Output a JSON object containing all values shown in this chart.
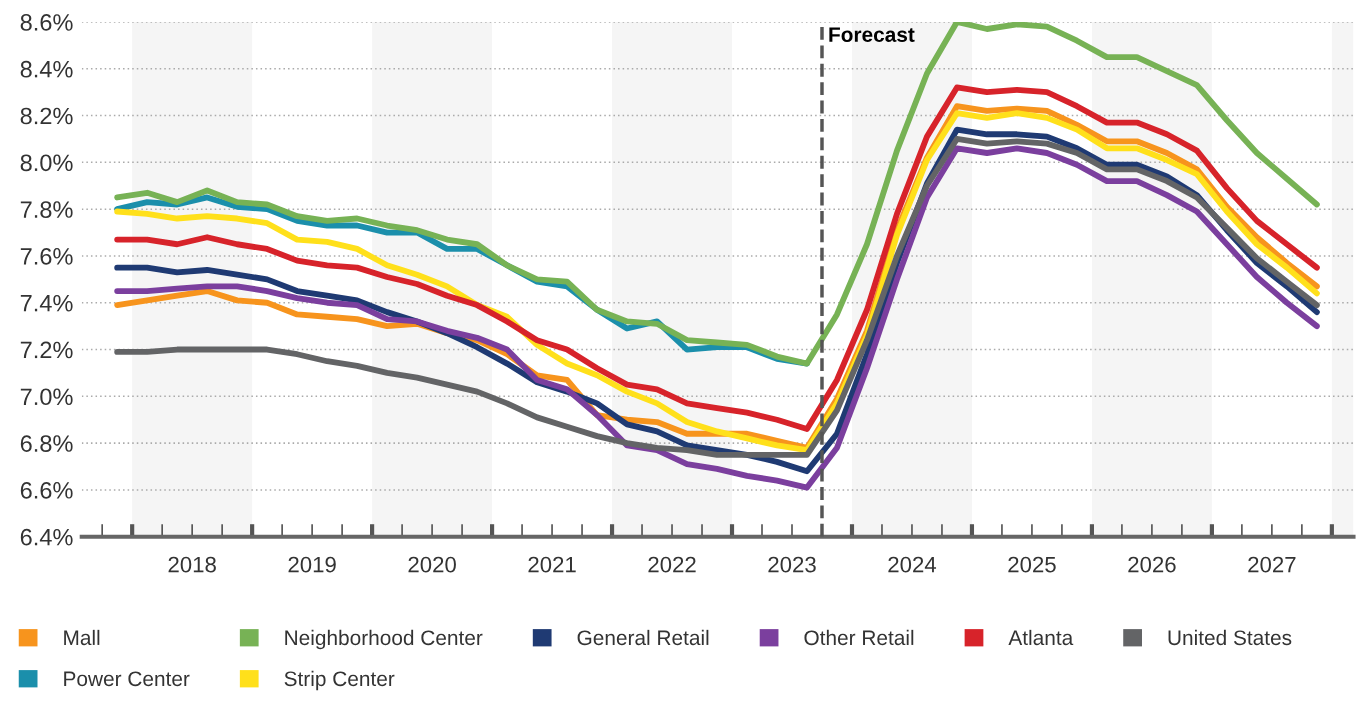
{
  "chart_data": {
    "type": "line",
    "x": [
      2017.875,
      2018.125,
      2018.375,
      2018.625,
      2018.875,
      2019.125,
      2019.375,
      2019.625,
      2019.875,
      2020.125,
      2020.375,
      2020.625,
      2020.875,
      2021.125,
      2021.375,
      2021.625,
      2021.875,
      2022.125,
      2022.375,
      2022.625,
      2022.875,
      2023.125,
      2023.375,
      2023.625,
      2023.875,
      2024.125,
      2024.375,
      2024.625,
      2024.875,
      2025.125,
      2025.375,
      2025.625,
      2025.875,
      2026.125,
      2026.375,
      2026.625,
      2026.875,
      2027.125,
      2027.375,
      2027.625,
      2027.875
    ],
    "series": [
      {
        "name": "Mall",
        "color": "#f7941d",
        "values": [
          7.39,
          7.41,
          7.43,
          7.45,
          7.41,
          7.4,
          7.35,
          7.34,
          7.33,
          7.3,
          7.31,
          7.27,
          7.24,
          7.18,
          7.09,
          7.07,
          6.92,
          6.9,
          6.89,
          6.84,
          6.84,
          6.84,
          6.81,
          6.78,
          6.99,
          7.28,
          7.71,
          8.02,
          8.24,
          8.22,
          8.23,
          8.22,
          8.16,
          8.09,
          8.09,
          8.04,
          7.97,
          7.81,
          7.68,
          7.57,
          7.47
        ]
      },
      {
        "name": "Power Center",
        "color": "#1b8fab",
        "values": [
          7.8,
          7.83,
          7.82,
          7.85,
          7.81,
          7.8,
          7.75,
          7.73,
          7.73,
          7.7,
          7.7,
          7.63,
          7.63,
          7.56,
          7.49,
          7.47,
          7.37,
          7.29,
          7.32,
          7.2,
          7.21,
          7.21,
          7.16,
          7.14,
          null,
          null,
          null,
          null,
          null,
          null,
          null,
          null,
          null,
          null,
          null,
          null,
          null,
          null,
          null,
          null,
          null
        ]
      },
      {
        "name": "Neighborhood Center",
        "color": "#77b255",
        "values": [
          7.85,
          7.87,
          7.83,
          7.88,
          7.83,
          7.82,
          7.77,
          7.75,
          7.76,
          7.73,
          7.71,
          7.67,
          7.65,
          7.56,
          7.5,
          7.49,
          7.37,
          7.32,
          7.31,
          7.24,
          7.23,
          7.22,
          7.17,
          7.14,
          7.35,
          7.65,
          8.05,
          8.38,
          8.6,
          8.57,
          8.59,
          8.58,
          8.52,
          8.45,
          8.45,
          8.39,
          8.33,
          8.18,
          8.04,
          7.93,
          7.82
        ]
      },
      {
        "name": "Strip Center",
        "color": "#ffe01b",
        "values": [
          7.79,
          7.78,
          7.76,
          7.77,
          7.76,
          7.74,
          7.67,
          7.66,
          7.63,
          7.56,
          7.52,
          7.47,
          7.39,
          7.34,
          7.22,
          7.14,
          7.09,
          7.02,
          6.97,
          6.89,
          6.85,
          6.82,
          6.79,
          6.77,
          6.97,
          7.26,
          7.69,
          8.01,
          8.21,
          8.19,
          8.21,
          8.19,
          8.14,
          8.06,
          8.06,
          8.01,
          7.95,
          7.79,
          7.65,
          7.55,
          7.44
        ]
      },
      {
        "name": "General Retail",
        "color": "#1f3a73",
        "values": [
          7.55,
          7.55,
          7.53,
          7.54,
          7.52,
          7.5,
          7.45,
          7.43,
          7.41,
          7.36,
          7.32,
          7.27,
          7.21,
          7.14,
          7.06,
          7.02,
          6.97,
          6.88,
          6.85,
          6.79,
          6.77,
          6.75,
          6.72,
          6.68,
          6.84,
          7.18,
          7.57,
          7.91,
          8.14,
          8.12,
          8.12,
          8.11,
          8.06,
          7.99,
          7.99,
          7.94,
          7.86,
          7.71,
          7.57,
          7.47,
          7.36
        ]
      },
      {
        "name": "Other Retail",
        "color": "#7b3f9e",
        "values": [
          7.45,
          7.45,
          7.46,
          7.47,
          7.47,
          7.45,
          7.42,
          7.4,
          7.39,
          7.33,
          7.32,
          7.28,
          7.25,
          7.2,
          7.07,
          7.03,
          6.92,
          6.79,
          6.77,
          6.71,
          6.69,
          6.66,
          6.64,
          6.61,
          6.78,
          7.12,
          7.5,
          7.85,
          8.06,
          8.04,
          8.06,
          8.04,
          7.99,
          7.92,
          7.92,
          7.86,
          7.79,
          7.65,
          7.51,
          7.4,
          7.3
        ]
      },
      {
        "name": "Atlanta",
        "color": "#d7232a",
        "values": [
          7.67,
          7.67,
          7.65,
          7.68,
          7.65,
          7.63,
          7.58,
          7.56,
          7.55,
          7.51,
          7.48,
          7.43,
          7.39,
          7.32,
          7.24,
          7.2,
          7.12,
          7.05,
          7.03,
          6.97,
          6.95,
          6.93,
          6.9,
          6.86,
          7.07,
          7.37,
          7.78,
          8.11,
          8.32,
          8.3,
          8.31,
          8.3,
          8.24,
          8.17,
          8.17,
          8.12,
          8.05,
          7.89,
          7.75,
          7.65,
          7.55
        ]
      },
      {
        "name": "United States",
        "color": "#636466",
        "values": [
          7.19,
          7.19,
          7.2,
          7.2,
          7.2,
          7.2,
          7.18,
          7.15,
          7.13,
          7.1,
          7.08,
          7.05,
          7.02,
          6.97,
          6.91,
          6.87,
          6.83,
          6.8,
          6.78,
          6.77,
          6.75,
          6.75,
          6.75,
          6.75,
          6.94,
          7.24,
          7.6,
          7.9,
          8.1,
          8.08,
          8.09,
          8.08,
          8.04,
          7.97,
          7.97,
          7.92,
          7.85,
          7.72,
          7.59,
          7.49,
          7.39
        ]
      }
    ],
    "xlim": [
      2017.58,
      2028.18
    ],
    "xticks": [
      {
        "value": 2017.75,
        "label": null
      },
      {
        "value": 2018,
        "label": null
      },
      {
        "value": 2018.25,
        "label": null
      },
      {
        "value": 2018.5,
        "label": "2018"
      },
      {
        "value": 2018.75,
        "label": null
      },
      {
        "value": 2019,
        "label": null
      },
      {
        "value": 2019.25,
        "label": null
      },
      {
        "value": 2019.5,
        "label": "2019"
      },
      {
        "value": 2019.75,
        "label": null
      },
      {
        "value": 2020,
        "label": null
      },
      {
        "value": 2020.25,
        "label": null
      },
      {
        "value": 2020.5,
        "label": "2020"
      },
      {
        "value": 2020.75,
        "label": null
      },
      {
        "value": 2021,
        "label": null
      },
      {
        "value": 2021.25,
        "label": null
      },
      {
        "value": 2021.5,
        "label": "2021"
      },
      {
        "value": 2021.75,
        "label": null
      },
      {
        "value": 2022,
        "label": null
      },
      {
        "value": 2022.25,
        "label": null
      },
      {
        "value": 2022.5,
        "label": "2022"
      },
      {
        "value": 2022.75,
        "label": null
      },
      {
        "value": 2023,
        "label": null
      },
      {
        "value": 2023.25,
        "label": null
      },
      {
        "value": 2023.5,
        "label": "2023"
      },
      {
        "value": 2023.75,
        "label": null
      },
      {
        "value": 2024,
        "label": null
      },
      {
        "value": 2024.25,
        "label": null
      },
      {
        "value": 2024.5,
        "label": "2024"
      },
      {
        "value": 2024.75,
        "label": null
      },
      {
        "value": 2025,
        "label": null
      },
      {
        "value": 2025.25,
        "label": null
      },
      {
        "value": 2025.5,
        "label": "2025"
      },
      {
        "value": 2025.75,
        "label": null
      },
      {
        "value": 2026,
        "label": null
      },
      {
        "value": 2026.25,
        "label": null
      },
      {
        "value": 2026.5,
        "label": "2026"
      },
      {
        "value": 2026.75,
        "label": null
      },
      {
        "value": 2027,
        "label": null
      },
      {
        "value": 2027.25,
        "label": null
      },
      {
        "value": 2027.5,
        "label": "2027"
      },
      {
        "value": 2027.75,
        "label": null
      },
      {
        "value": 2028,
        "label": null
      }
    ],
    "ylim": [
      6.4,
      8.6
    ],
    "yticks": [
      {
        "value": 6.4,
        "label": "6.4%"
      },
      {
        "value": 6.6,
        "label": "6.6%"
      },
      {
        "value": 6.8,
        "label": "6.8%"
      },
      {
        "value": 7.0,
        "label": "7.0%"
      },
      {
        "value": 7.2,
        "label": "7.2%"
      },
      {
        "value": 7.4,
        "label": "7.4%"
      },
      {
        "value": 7.6,
        "label": "7.6%"
      },
      {
        "value": 7.8,
        "label": "7.8%"
      },
      {
        "value": 8.0,
        "label": "8.0%"
      },
      {
        "value": 8.2,
        "label": "8.2%"
      },
      {
        "value": 8.4,
        "label": "8.4%"
      },
      {
        "value": 8.6,
        "label": "8.6%"
      }
    ],
    "ref_lines": [
      {
        "axis": "x",
        "value": 2023.75,
        "label": "Forecast",
        "color": "#555555",
        "line_style": "dashed"
      }
    ],
    "bands": [
      {
        "axis": "x",
        "from": 2018,
        "to": 2019,
        "color": "#f5f5f5"
      },
      {
        "axis": "x",
        "from": 2020,
        "to": 2021,
        "color": "#f5f5f5"
      },
      {
        "axis": "x",
        "from": 2022,
        "to": 2023,
        "color": "#f5f5f5"
      },
      {
        "axis": "x",
        "from": 2024,
        "to": 2025,
        "color": "#f5f5f5"
      },
      {
        "axis": "x",
        "from": 2026,
        "to": 2027,
        "color": "#f5f5f5"
      },
      {
        "axis": "x",
        "from": 2028,
        "to": 2028.18,
        "color": "#f5f5f5"
      }
    ],
    "grid": "y",
    "legend": "bottom",
    "marker": "none",
    "line_style": "solid"
  }
}
